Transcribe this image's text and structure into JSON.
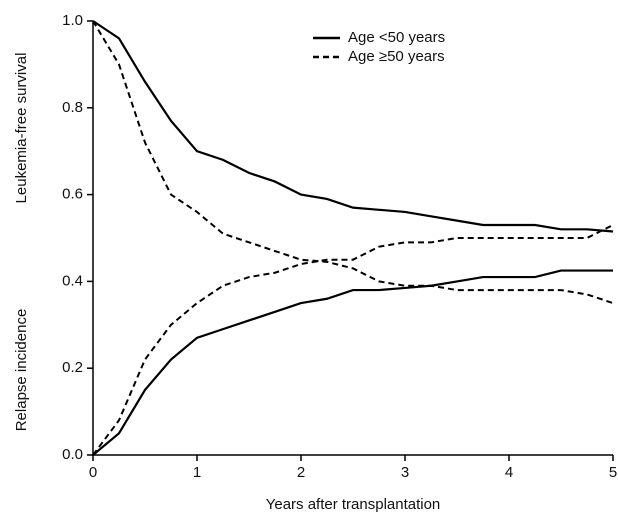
{
  "chart_data": {
    "type": "line",
    "xlabel": "Years after transplantation",
    "ylabels": [
      "Leukemia-free survival",
      "Relapse incidence"
    ],
    "x": [
      0,
      0.25,
      0.5,
      0.75,
      1.0,
      1.25,
      1.5,
      1.75,
      2.0,
      2.25,
      2.5,
      2.75,
      3.0,
      3.25,
      3.5,
      3.75,
      4.0,
      4.25,
      4.5,
      4.75,
      5.0
    ],
    "xlim": [
      0,
      5
    ],
    "xticks": [
      0,
      1,
      2,
      3,
      4,
      5
    ],
    "ylim": [
      0,
      1
    ],
    "yticks": [
      {
        "value": 0,
        "label": "0.0"
      },
      0.2,
      0.4,
      0.6,
      0.8,
      {
        "value": 1,
        "label": "1.0"
      }
    ],
    "legend": "top",
    "series": [
      {
        "name": "Age <50 years",
        "color": "#000000",
        "dashed": false,
        "lfs": [
          1.0,
          0.96,
          0.86,
          0.77,
          0.7,
          0.68,
          0.65,
          0.63,
          0.6,
          0.59,
          0.57,
          0.565,
          0.56,
          0.55,
          0.54,
          0.53,
          0.53,
          0.53,
          0.52,
          0.52,
          0.515
        ],
        "relapse": [
          0,
          0.05,
          0.15,
          0.22,
          0.27,
          0.29,
          0.31,
          0.33,
          0.35,
          0.36,
          0.38,
          0.38,
          0.385,
          0.39,
          0.4,
          0.41,
          0.41,
          0.41,
          0.425,
          0.425,
          0.425
        ]
      },
      {
        "name": "Age ≥50 years",
        "color": "#000000",
        "dashed": true,
        "lfs": [
          1.0,
          0.9,
          0.72,
          0.6,
          0.56,
          0.51,
          0.49,
          0.47,
          0.45,
          0.445,
          0.43,
          0.4,
          0.39,
          0.39,
          0.38,
          0.38,
          0.38,
          0.38,
          0.38,
          0.37,
          0.35
        ],
        "relapse": [
          0,
          0.08,
          0.22,
          0.3,
          0.35,
          0.39,
          0.41,
          0.42,
          0.44,
          0.45,
          0.45,
          0.48,
          0.49,
          0.49,
          0.5,
          0.5,
          0.5,
          0.5,
          0.5,
          0.5,
          0.53
        ]
      }
    ]
  }
}
